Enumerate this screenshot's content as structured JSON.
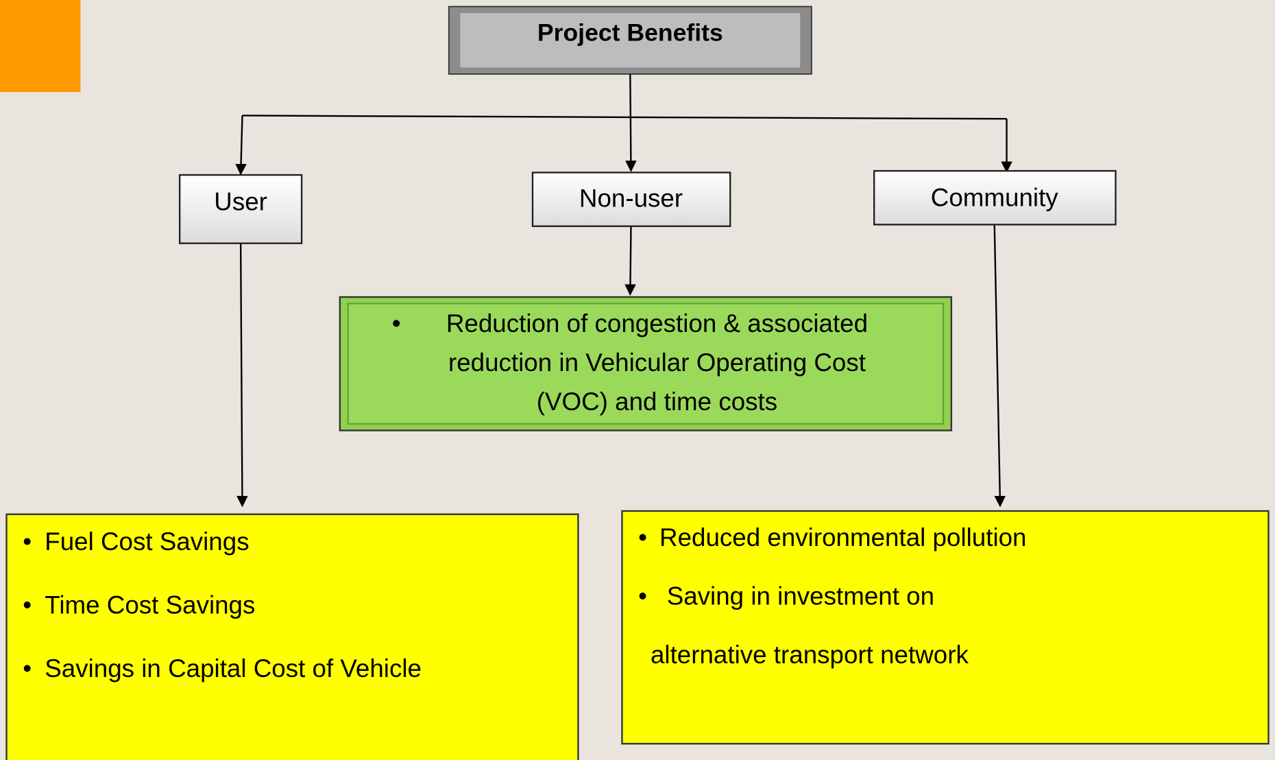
{
  "root": {
    "label": "Project Benefits"
  },
  "nodes": [
    {
      "label": "User"
    },
    {
      "label": "Non-user"
    },
    {
      "label": "Community"
    }
  ],
  "non_user_benefit": {
    "lines": [
      "Reduction of congestion & associated",
      "reduction in Vehicular Operating Cost",
      "(VOC) and time costs"
    ]
  },
  "user_benefits": {
    "items": [
      "Fuel Cost Savings",
      "Time Cost Savings",
      "Savings in Capital Cost of Vehicle"
    ]
  },
  "community_benefits": {
    "items": [
      "Reduced environmental pollution",
      "Saving in investment on"
    ],
    "continuation": "alternative transport network"
  }
}
